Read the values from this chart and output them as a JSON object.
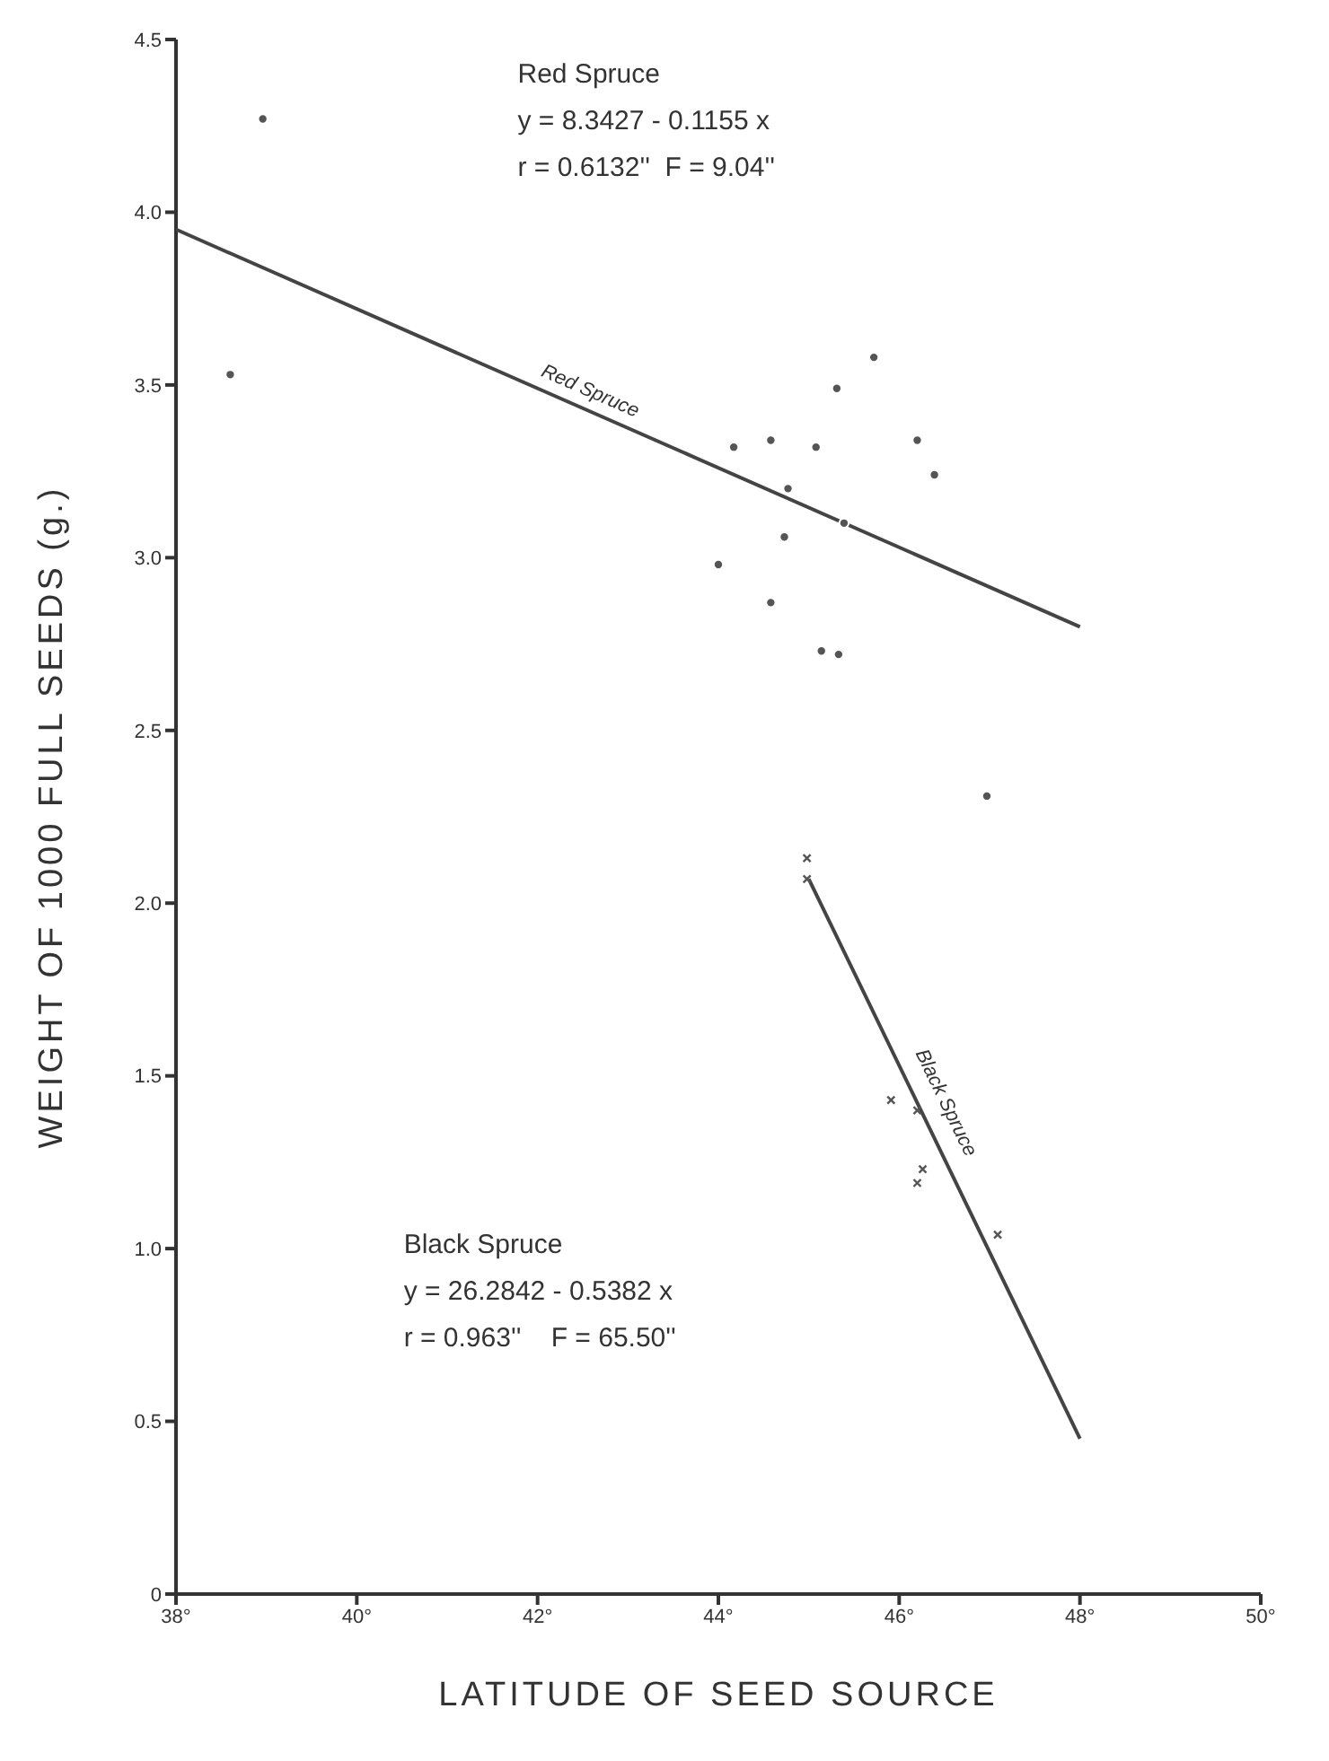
{
  "chart_data": {
    "type": "scatter",
    "xlabel": "LATITUDE OF SEED SOURCE",
    "ylabel": "WEIGHT OF 1000 FULL SEEDS (g.)",
    "xlim": [
      38,
      50
    ],
    "ylim": [
      0,
      4.5
    ],
    "xticks": [
      {
        "value": 38,
        "label": "38°"
      },
      {
        "value": 40,
        "label": "40°"
      },
      {
        "value": 42,
        "label": "42°"
      },
      {
        "value": 44,
        "label": "44°"
      },
      {
        "value": 46,
        "label": "46°"
      },
      {
        "value": 48,
        "label": "48°"
      },
      {
        "value": 50,
        "label": "50°"
      }
    ],
    "yticks": [
      0,
      {
        "value": 0.5,
        "label": "0.5"
      },
      {
        "value": 1,
        "label": "1.0"
      },
      {
        "value": 1.5,
        "label": "1.5"
      },
      {
        "value": 2,
        "label": "2.0"
      },
      {
        "value": 2.5,
        "label": "2.5"
      },
      {
        "value": 3,
        "label": "3.0"
      },
      {
        "value": 3.5,
        "label": "3.5"
      },
      {
        "value": 4,
        "label": "4.0"
      },
      {
        "value": 4.5,
        "label": "4.5"
      }
    ],
    "grid": false,
    "legend": false,
    "series": [
      {
        "color": "#555555",
        "marker": "circle",
        "x": [
          38.96,
          38.6,
          45.72,
          45.31,
          44.17,
          44.58,
          45.08,
          46.2,
          46.39,
          44.77,
          45.39,
          44.73,
          44.0,
          44.58,
          45.14,
          45.33,
          46.97
        ],
        "values": [
          4.27,
          3.53,
          3.58,
          3.49,
          3.32,
          3.34,
          3.32,
          3.34,
          3.24,
          3.2,
          3.1,
          3.06,
          2.98,
          2.87,
          2.73,
          2.72,
          2.31
        ]
      },
      {
        "color": "#555555",
        "marker": "cross",
        "x": [
          44.98,
          44.98,
          45.91,
          46.2,
          46.26,
          46.2,
          47.09
        ],
        "values": [
          2.13,
          2.07,
          1.43,
          1.4,
          1.23,
          1.19,
          1.04
        ]
      },
      {
        "type": "line",
        "name": "Red Spruce",
        "color": "#444444",
        "x": [
          38,
          48
        ],
        "values": [
          3.95,
          2.8
        ]
      },
      {
        "type": "line",
        "name": "Black Spruce",
        "color": "#444444",
        "x": [
          45,
          48
        ],
        "values": [
          2.07,
          0.45
        ]
      }
    ],
    "annotations": [
      "Red Spruce",
      "y = 8.3427 - 0.1155 x",
      "r = 0.6132''  F = 9.04''",
      "Black Spruce",
      "y = 26.2842 - 0.5382 x",
      "r = 0.963''    F = 65.50''"
    ]
  }
}
